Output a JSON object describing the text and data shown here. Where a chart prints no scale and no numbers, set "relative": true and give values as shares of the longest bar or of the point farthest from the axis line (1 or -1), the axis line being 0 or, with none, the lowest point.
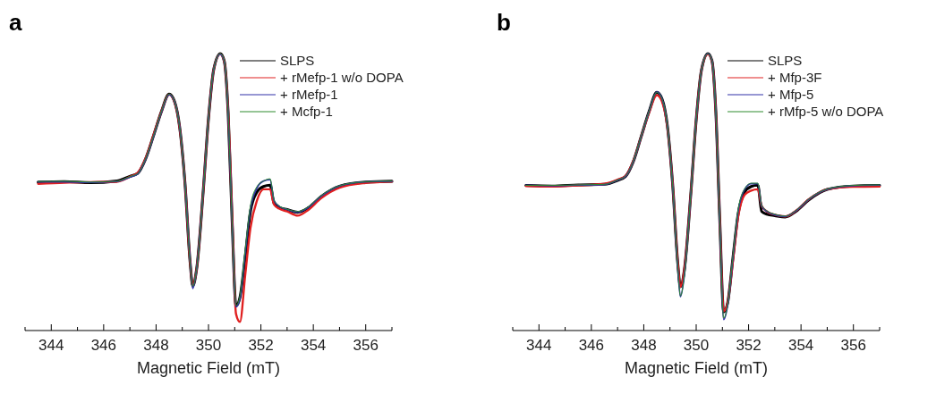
{
  "chart_data": [
    {
      "type": "line",
      "title": "a",
      "xlabel": "Magnetic Field (mT)",
      "relative": true,
      "legend": "top right",
      "xlim": [
        343,
        357
      ],
      "xticks": [
        {
          "value": 343,
          "label": null
        },
        344,
        {
          "value": 345,
          "label": null
        },
        346,
        {
          "value": 347,
          "label": null
        },
        348,
        {
          "value": 349,
          "label": null
        },
        350,
        {
          "value": 351,
          "label": null
        },
        352,
        {
          "value": 353,
          "label": null
        },
        354,
        {
          "value": 355,
          "label": null
        },
        356,
        {
          "value": 357,
          "label": null
        }
      ],
      "x": [
        343.5,
        344.5,
        345.5,
        346.5,
        347,
        347.3,
        347.6,
        347.9,
        348.2,
        348.5,
        348.7,
        348.9,
        349.1,
        349.3,
        349.4,
        349.55,
        349.8,
        350,
        350.2,
        350.45,
        350.6,
        350.75,
        350.9,
        351.05,
        351.2,
        351.4,
        351.6,
        351.85,
        352.1,
        352.35,
        352.5,
        352.7,
        353,
        353.4,
        353.8,
        354.3,
        355,
        356,
        357
      ],
      "series": [
        {
          "name": "SLPS",
          "color": "#000000",
          "values": [
            0.536,
            0.538,
            0.534,
            0.54,
            0.557,
            0.568,
            0.62,
            0.703,
            0.79,
            0.854,
            0.828,
            0.734,
            0.536,
            0.245,
            0.161,
            0.224,
            0.505,
            0.766,
            0.943,
            1,
            0.974,
            0.786,
            0.401,
            0.089,
            0.12,
            0.266,
            0.43,
            0.5,
            0.52,
            0.525,
            0.46,
            0.445,
            0.437,
            0.427,
            0.443,
            0.484,
            0.521,
            0.536,
            0.539
          ]
        },
        {
          "name": "+ rMefp-1 w/o DOPA",
          "color": "#e02020",
          "values": [
            0.53,
            0.534,
            0.536,
            0.537,
            0.555,
            0.57,
            0.622,
            0.705,
            0.79,
            0.852,
            0.826,
            0.732,
            0.536,
            0.245,
            0.162,
            0.224,
            0.505,
            0.766,
            0.943,
            0.998,
            0.972,
            0.79,
            0.42,
            0.06,
            0.031,
            0.2,
            0.37,
            0.47,
            0.51,
            0.51,
            0.455,
            0.44,
            0.43,
            0.415,
            0.435,
            0.478,
            0.516,
            0.533,
            0.538
          ]
        },
        {
          "name": "+ rMefp-1",
          "color": "#3030a8",
          "values": [
            0.537,
            0.537,
            0.535,
            0.538,
            0.554,
            0.566,
            0.618,
            0.7,
            0.788,
            0.852,
            0.828,
            0.735,
            0.536,
            0.25,
            0.152,
            0.224,
            0.505,
            0.766,
            0.943,
            0.998,
            0.973,
            0.786,
            0.4,
            0.085,
            0.115,
            0.28,
            0.44,
            0.515,
            0.54,
            0.545,
            0.47,
            0.448,
            0.437,
            0.428,
            0.444,
            0.485,
            0.522,
            0.537,
            0.539
          ]
        },
        {
          "name": "+ Mcfp-1",
          "color": "#2e8b2e",
          "values": [
            0.538,
            0.539,
            0.536,
            0.539,
            0.556,
            0.567,
            0.62,
            0.702,
            0.79,
            0.854,
            0.828,
            0.734,
            0.536,
            0.245,
            0.16,
            0.224,
            0.505,
            0.766,
            0.943,
            1,
            0.974,
            0.786,
            0.401,
            0.09,
            0.125,
            0.29,
            0.45,
            0.52,
            0.54,
            0.548,
            0.472,
            0.45,
            0.438,
            0.43,
            0.446,
            0.487,
            0.523,
            0.537,
            0.54
          ]
        }
      ]
    },
    {
      "type": "line",
      "title": "b",
      "xlabel": "Magnetic Field (mT)",
      "relative": true,
      "legend": "top right",
      "xlim": [
        343,
        357
      ],
      "xticks": [
        {
          "value": 343,
          "label": null
        },
        344,
        {
          "value": 345,
          "label": null
        },
        346,
        {
          "value": 347,
          "label": null
        },
        348,
        {
          "value": 349,
          "label": null
        },
        350,
        {
          "value": 351,
          "label": null
        },
        352,
        {
          "value": 353,
          "label": null
        },
        354,
        {
          "value": 355,
          "label": null
        },
        356,
        {
          "value": 357,
          "label": null
        }
      ],
      "x": [
        343.5,
        344.5,
        345.5,
        346.5,
        347,
        347.3,
        347.6,
        347.9,
        348.2,
        348.5,
        348.7,
        348.9,
        349.1,
        349.3,
        349.4,
        349.55,
        349.8,
        350,
        350.2,
        350.45,
        350.6,
        350.75,
        350.9,
        351.05,
        351.2,
        351.4,
        351.6,
        351.85,
        352.1,
        352.35,
        352.5,
        352.7,
        353,
        353.4,
        353.8,
        354.3,
        355,
        356,
        357
      ],
      "series": [
        {
          "name": "SLPS",
          "color": "#000000",
          "values": [
            0.524,
            0.522,
            0.526,
            0.528,
            0.542,
            0.556,
            0.61,
            0.7,
            0.79,
            0.86,
            0.835,
            0.74,
            0.53,
            0.24,
            0.158,
            0.22,
            0.5,
            0.76,
            0.94,
            1,
            0.975,
            0.79,
            0.4,
            0.067,
            0.1,
            0.26,
            0.42,
            0.5,
            0.52,
            0.525,
            0.43,
            0.42,
            0.415,
            0.41,
            0.43,
            0.472,
            0.51,
            0.522,
            0.524
          ]
        },
        {
          "name": "+ Mfp-3F",
          "color": "#e02020",
          "values": [
            0.522,
            0.52,
            0.524,
            0.53,
            0.545,
            0.558,
            0.612,
            0.7,
            0.786,
            0.85,
            0.826,
            0.735,
            0.53,
            0.24,
            0.158,
            0.22,
            0.5,
            0.76,
            0.94,
            0.998,
            0.973,
            0.79,
            0.4,
            0.07,
            0.1,
            0.25,
            0.41,
            0.49,
            0.505,
            0.51,
            0.45,
            0.43,
            0.418,
            0.412,
            0.432,
            0.474,
            0.51,
            0.519,
            0.52
          ]
        },
        {
          "name": "+ Mfp-5",
          "color": "#3030a8",
          "values": [
            0.525,
            0.523,
            0.525,
            0.527,
            0.543,
            0.556,
            0.61,
            0.7,
            0.79,
            0.862,
            0.836,
            0.74,
            0.525,
            0.22,
            0.122,
            0.2,
            0.5,
            0.76,
            0.94,
            1,
            0.975,
            0.79,
            0.39,
            0.04,
            0.09,
            0.26,
            0.43,
            0.51,
            0.53,
            0.53,
            0.45,
            0.43,
            0.418,
            0.412,
            0.432,
            0.474,
            0.51,
            0.523,
            0.525
          ]
        },
        {
          "name": "+ rMfp-5 w/o DOPA",
          "color": "#2e8b2e",
          "values": [
            0.524,
            0.524,
            0.526,
            0.528,
            0.544,
            0.557,
            0.611,
            0.701,
            0.79,
            0.86,
            0.835,
            0.74,
            0.526,
            0.222,
            0.125,
            0.2,
            0.5,
            0.76,
            0.94,
            1,
            0.975,
            0.79,
            0.392,
            0.045,
            0.092,
            0.265,
            0.435,
            0.512,
            0.532,
            0.532,
            0.452,
            0.432,
            0.42,
            0.413,
            0.433,
            0.475,
            0.511,
            0.524,
            0.526
          ]
        }
      ]
    }
  ]
}
